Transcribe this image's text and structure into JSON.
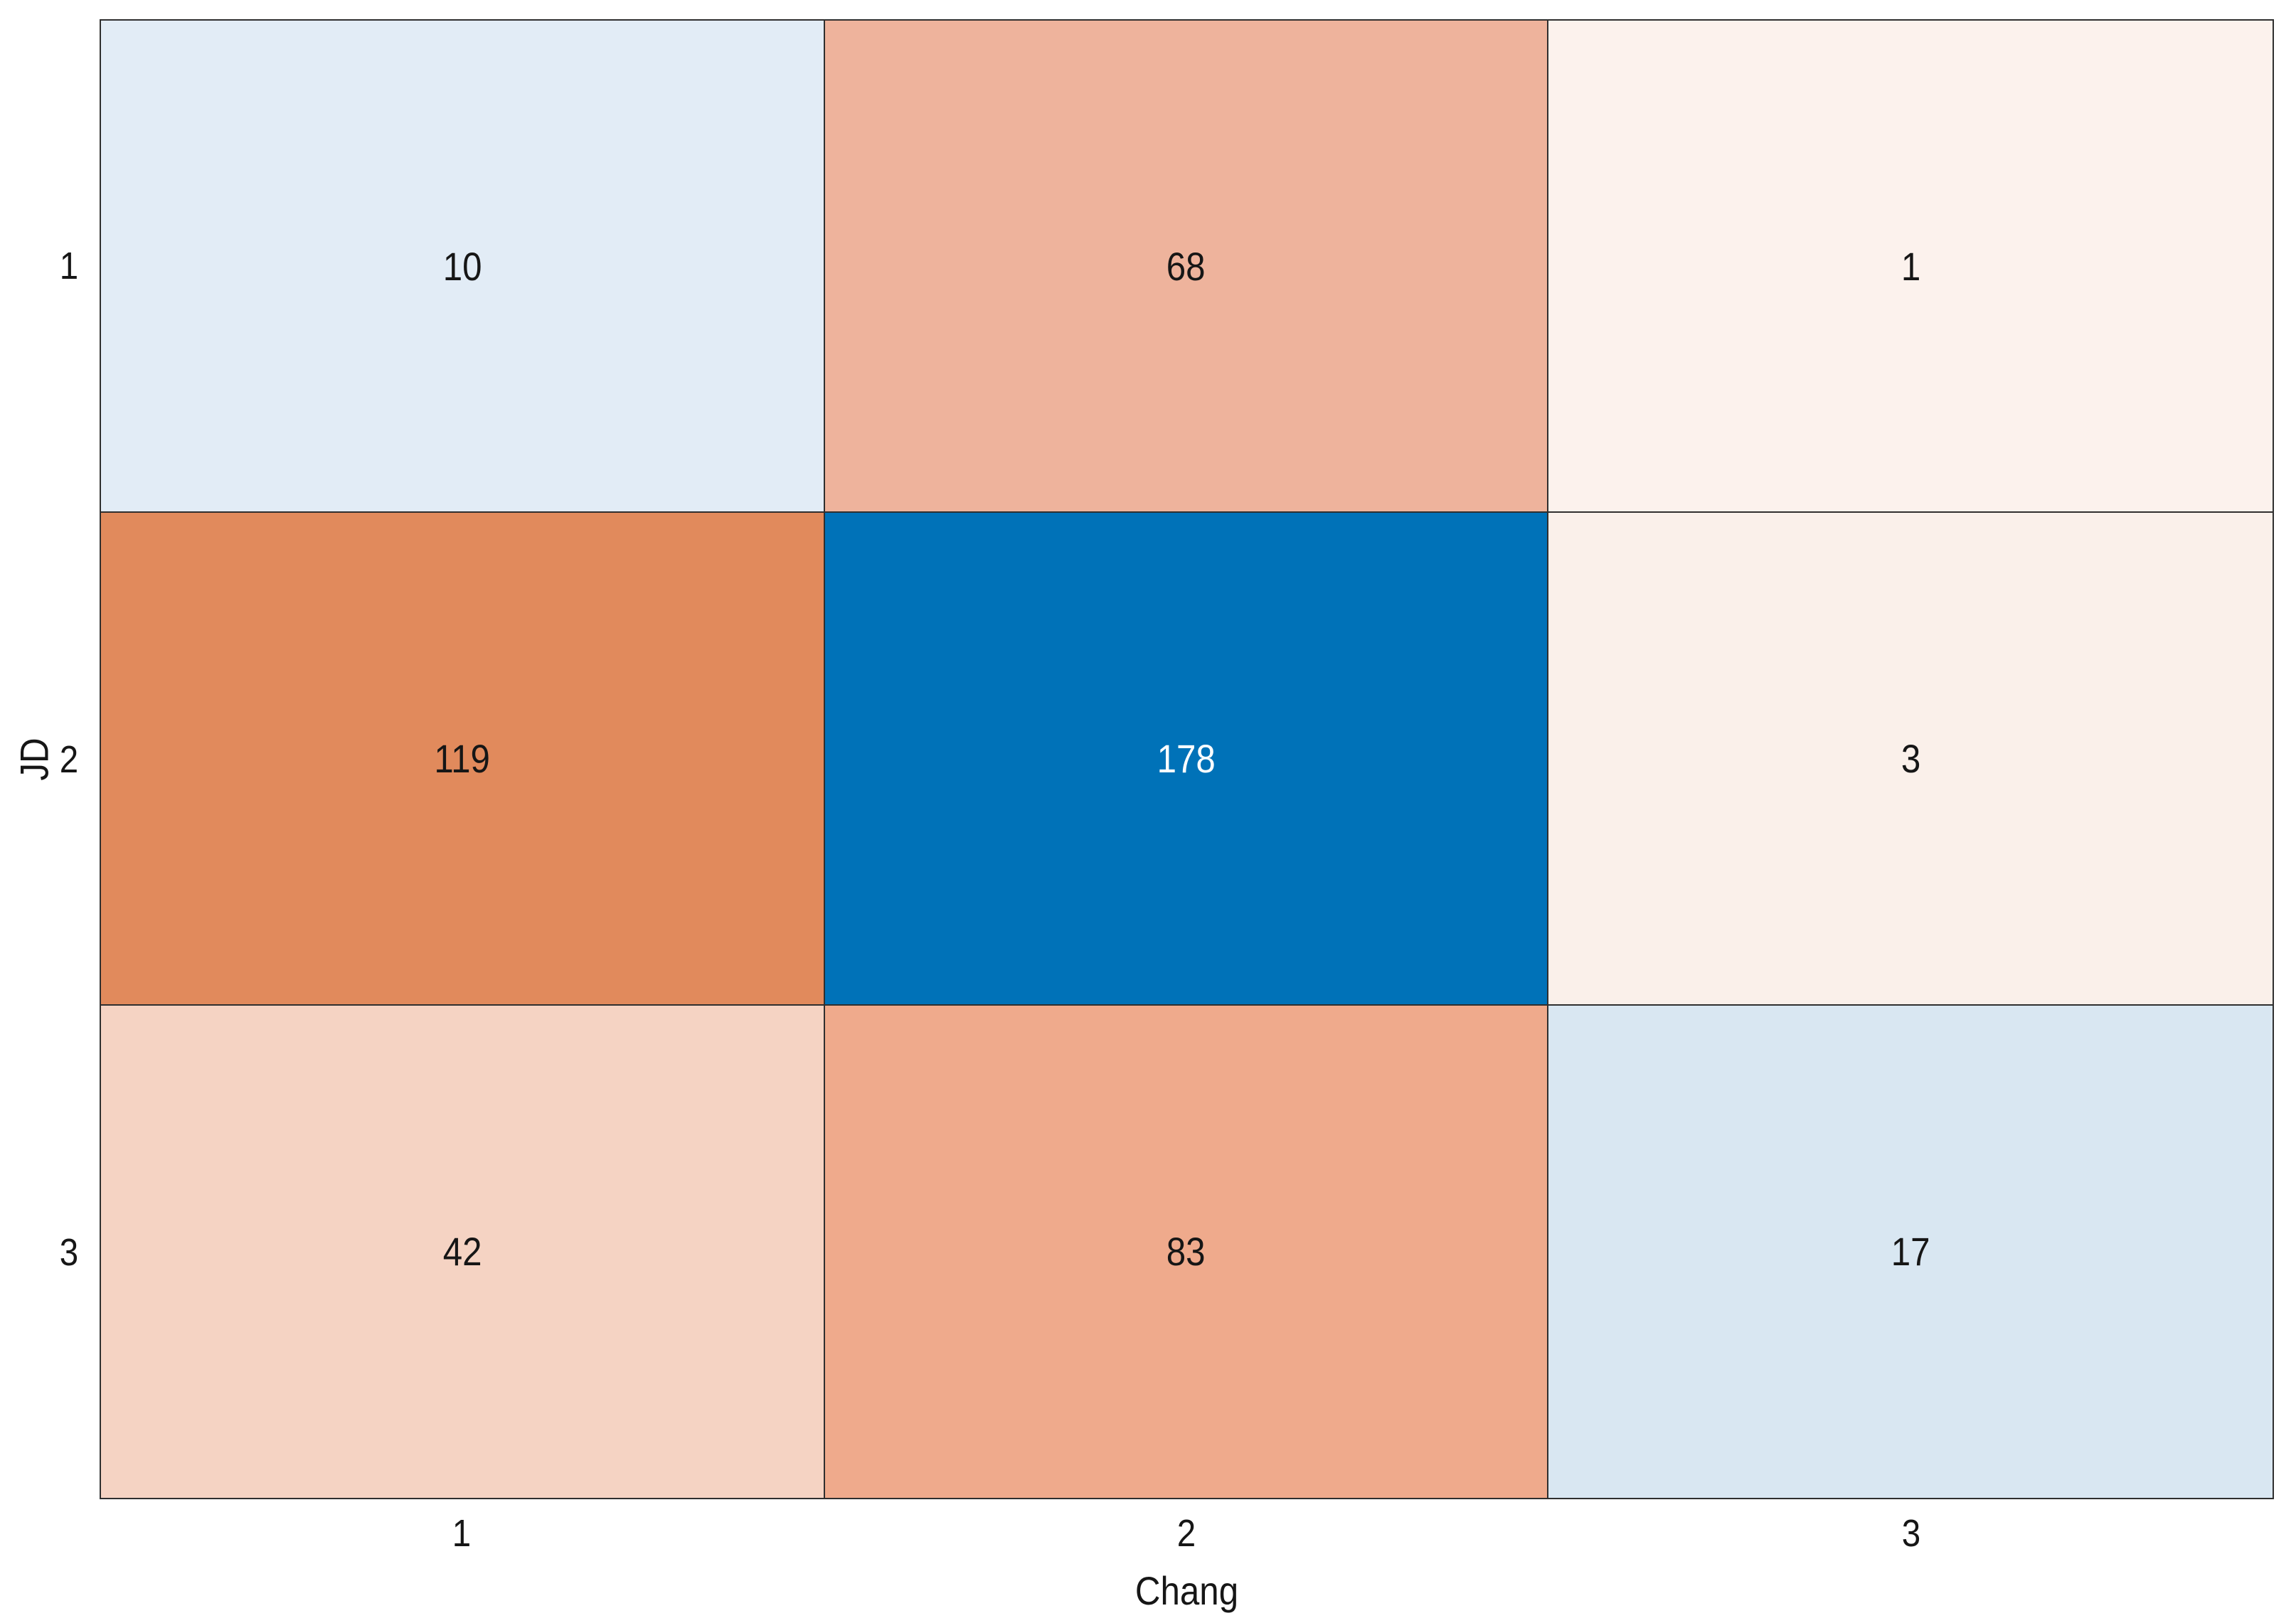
{
  "chart_data": {
    "type": "heatmap",
    "title": "",
    "xlabel": "Chang",
    "ylabel": "JD",
    "x_categories": [
      "1",
      "2",
      "3"
    ],
    "y_categories": [
      "1",
      "2",
      "3"
    ],
    "rows": [
      {
        "y": "1",
        "values": [
          10,
          68,
          1
        ]
      },
      {
        "y": "2",
        "values": [
          119,
          178,
          3
        ]
      },
      {
        "y": "3",
        "values": [
          42,
          83,
          17
        ]
      }
    ],
    "cell_colors": [
      [
        "#e2ecf6",
        "#eeb39c",
        "#fcf2ed"
      ],
      [
        "#e18a5c",
        "#0072b8",
        "#faf0ea"
      ],
      [
        "#f5d3c3",
        "#efaa8c",
        "#d9e7f2"
      ]
    ],
    "cell_text_colors": [
      [
        "#161616",
        "#161616",
        "#161616"
      ],
      [
        "#161616",
        "#ffffff",
        "#161616"
      ],
      [
        "#161616",
        "#161616",
        "#161616"
      ]
    ],
    "grid_color": "#2f2f2f",
    "background": "#ffffff",
    "legend": "none",
    "axis_ranges": {
      "x": [
        "1",
        "3"
      ],
      "y": [
        "1",
        "3"
      ]
    }
  }
}
